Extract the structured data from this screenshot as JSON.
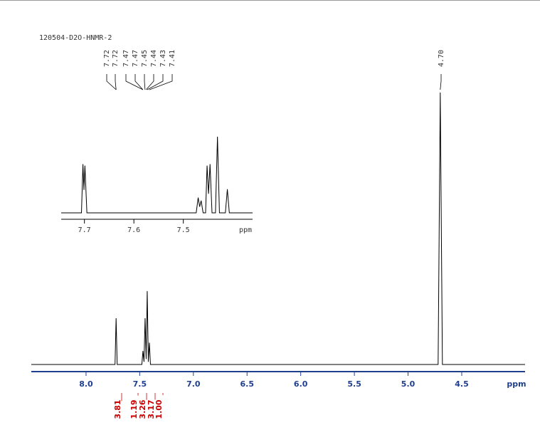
{
  "chart_data": [
    {
      "type": "line",
      "title": "120504-D2O-HNMR-2",
      "x_label": "ppm",
      "color": "#000000",
      "x": [
        8.51,
        7.73,
        7.72,
        7.71,
        7.48,
        7.47,
        7.46,
        7.45,
        7.44,
        7.43,
        7.42,
        7.41,
        7.4,
        4.72,
        4.7,
        4.68,
        3.91
      ],
      "values": [
        0,
        0,
        17,
        0,
        0,
        5,
        1,
        17,
        2,
        27,
        1,
        8,
        0,
        0,
        100,
        0,
        0
      ],
      "xlim": [
        8.51,
        3.91
      ],
      "ylim": [
        0,
        100
      ],
      "xticks": [
        {
          "value": 8,
          "label": "8.0"
        },
        7.5,
        {
          "value": 7,
          "label": "7.0"
        },
        6.5,
        {
          "value": 6,
          "label": "6.0"
        },
        5.5,
        {
          "value": 5,
          "label": "5.0"
        },
        4.5
      ],
      "peak_labels": [
        7.72,
        7.72,
        7.47,
        7.47,
        7.45,
        7.44,
        7.43,
        7.41,
        4.7
      ],
      "peak_label_texts": [
        "7.72",
        "7.72",
        "7.47",
        "7.47",
        "7.45",
        "7.44",
        "7.43",
        "7.41",
        "4.70"
      ],
      "integrals": {
        "color": "#cc0000",
        "values": [
          3.81,
          1.19,
          3.26,
          3.17,
          1
        ],
        "value_labels": [
          "3.81",
          "1.19",
          "3.26",
          "3.17",
          "1.00"
        ]
      }
    },
    {
      "type": "line",
      "x_label": "ppm",
      "color": "#000000",
      "x": [
        7.747,
        7.706,
        7.703,
        7.701,
        7.699,
        7.695,
        7.474,
        7.47,
        7.467,
        7.464,
        7.46,
        7.455,
        7.452,
        7.449,
        7.446,
        7.442,
        7.435,
        7.431,
        7.427,
        7.415,
        7.411,
        7.407,
        7.36
      ],
      "values": [
        0,
        0,
        64,
        30,
        62,
        0,
        0,
        20,
        8,
        16,
        0,
        0,
        62,
        25,
        64,
        0,
        0,
        100,
        0,
        0,
        31,
        0,
        0
      ],
      "xlim": [
        7.747,
        7.36
      ],
      "ylim": [
        0,
        100
      ],
      "xticks": [
        7.7,
        7.6,
        7.5
      ]
    }
  ]
}
